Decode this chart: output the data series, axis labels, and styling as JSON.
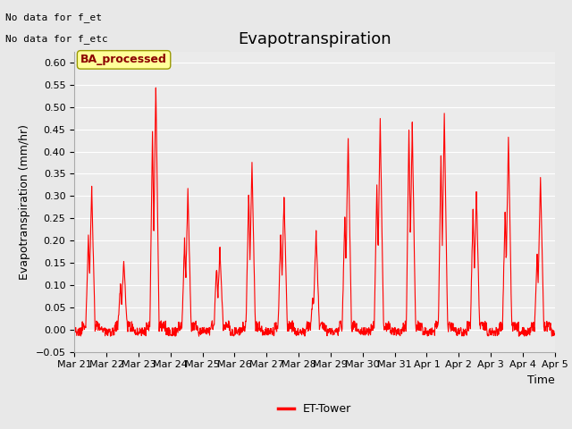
{
  "title": "Evapotranspiration",
  "xlabel": "Time",
  "ylabel": "Evapotranspiration (mm/hr)",
  "ylim": [
    -0.05,
    0.625
  ],
  "yticks": [
    -0.05,
    0.0,
    0.05,
    0.1,
    0.15,
    0.2,
    0.25,
    0.3,
    0.35,
    0.4,
    0.45,
    0.5,
    0.55,
    0.6
  ],
  "line_color": "#FF0000",
  "line_width": 0.8,
  "background_color": "#E8E8E8",
  "plot_bg_color": "#EBEBEB",
  "grid_color": "#FFFFFF",
  "no_data_text1": "No data for f_et",
  "no_data_text2": "No data for f_etc",
  "legend_label": "ET-Tower",
  "legend_box_color": "#FFFF99",
  "legend_box_edge": "#999900",
  "legend_text_color": "#8B0000",
  "ba_label": "BA_processed",
  "xtick_labels": [
    "Mar 21",
    "Mar 22",
    "Mar 23",
    "Mar 24",
    "Mar 25",
    "Mar 26",
    "Mar 27",
    "Mar 28",
    "Mar 29",
    "Mar 30",
    "Mar 31",
    "Apr 1",
    "Apr 2",
    "Apr 3",
    "Apr 4",
    "Apr 5"
  ],
  "title_fontsize": 13,
  "axis_fontsize": 9,
  "tick_fontsize": 8,
  "nodata_fontsize": 8,
  "n_days": 15,
  "day_peaks": [
    0.32,
    0.16,
    0.55,
    0.31,
    0.18,
    0.38,
    0.3,
    0.22,
    0.43,
    0.47,
    0.46,
    0.49,
    0.31,
    0.43,
    0.34
  ],
  "day_peaks2": [
    0.21,
    0.1,
    0.44,
    0.2,
    0.14,
    0.31,
    0.22,
    0.07,
    0.26,
    0.32,
    0.45,
    0.39,
    0.27,
    0.27,
    0.17
  ]
}
